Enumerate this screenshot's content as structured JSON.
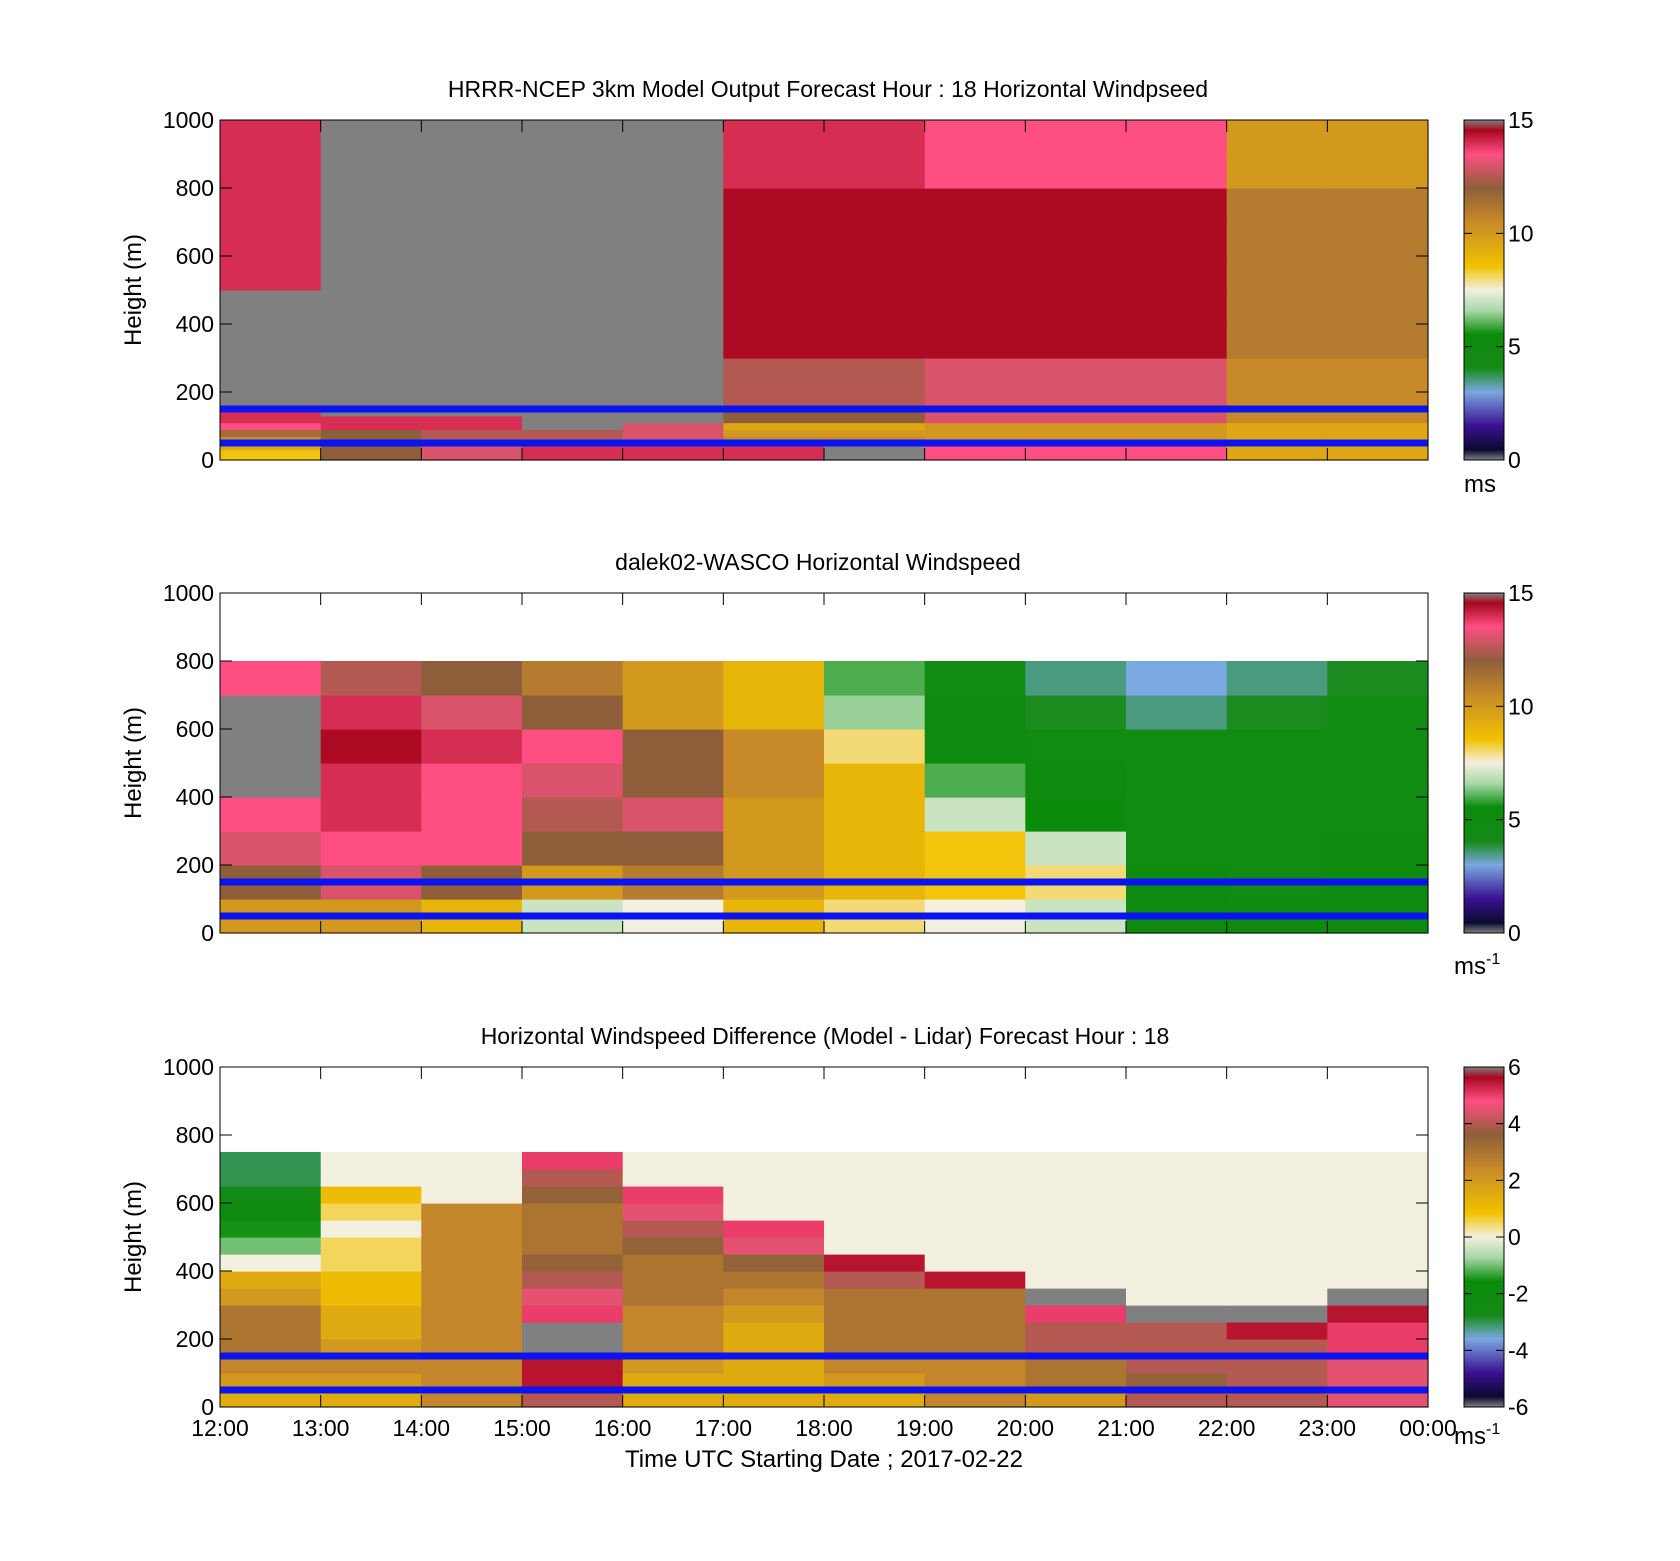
{
  "chart_data": [
    {
      "type": "heatmap",
      "title": "HRRR-NCEP 3km Model Output   Forecast Hour : 18 Horizontal Windpseed",
      "ylabel": "Height (m)",
      "ylim": [
        0,
        1000
      ],
      "yticks": [
        "0",
        "200",
        "400",
        "600",
        "800",
        "1000"
      ],
      "xlim": [
        12,
        24
      ],
      "colorbar": {
        "range": [
          0,
          15
        ],
        "ticks": [
          "0",
          "5",
          "10",
          "15"
        ],
        "unit": "ms",
        "unit_sup": ""
      },
      "reference_heights_m": [
        50,
        150
      ],
      "time_bins_h": [
        12,
        13,
        14,
        15,
        16,
        17,
        18,
        19,
        20,
        21,
        22,
        23
      ],
      "height_bins_m": [
        30,
        50,
        70,
        90,
        110,
        130,
        150,
        200,
        300,
        400,
        500,
        600,
        700,
        800,
        900,
        1000
      ],
      "values": [
        [
          8.5,
          12,
          13,
          14,
          14,
          14,
          15,
          13.5,
          13.5,
          13.5,
          9.5,
          9.5
        ],
        [
          9.5,
          12,
          13,
          14,
          14,
          14,
          15,
          13.5,
          13.5,
          13.5,
          9.5,
          9.5
        ],
        [
          10.5,
          12,
          12.5,
          12.5,
          13,
          10.5,
          10.5,
          10,
          10,
          10,
          9.5,
          9.5
        ],
        [
          11.5,
          12,
          12.5,
          12.5,
          13,
          10,
          10,
          10,
          10,
          10,
          9.5,
          9.5
        ],
        [
          13.5,
          14,
          14,
          15,
          13,
          9.5,
          9.5,
          10,
          10,
          10,
          9.5,
          9.5
        ],
        [
          14,
          14,
          14,
          15,
          15,
          12,
          12,
          13,
          13,
          13,
          10.5,
          10.5
        ],
        [
          14,
          0,
          0,
          0,
          0,
          12,
          12,
          13,
          13,
          13,
          10.5,
          10.5
        ],
        [
          15,
          0,
          0,
          0,
          15,
          12.5,
          12.5,
          13,
          13,
          13,
          10.5,
          10.5
        ],
        [
          15,
          0,
          0,
          0,
          15,
          12.5,
          12.5,
          13,
          13,
          13,
          10.5,
          10.5
        ],
        [
          15,
          0,
          0,
          0,
          0,
          14.5,
          14.5,
          14.5,
          14.5,
          14.5,
          11,
          11
        ],
        [
          15,
          0,
          0,
          0,
          0,
          14.5,
          14.5,
          14.5,
          14.5,
          14.5,
          11,
          11
        ],
        [
          14,
          15,
          0,
          0,
          0,
          14.5,
          14.5,
          14.5,
          14.5,
          14.5,
          11,
          11
        ],
        [
          14,
          15,
          0,
          0,
          0,
          14.5,
          14.5,
          14.5,
          14.5,
          14.5,
          11,
          11
        ],
        [
          14,
          15,
          0,
          0,
          0,
          14.5,
          14.5,
          14.5,
          14.5,
          14.5,
          11,
          11
        ],
        [
          14,
          15,
          0,
          15,
          15,
          14,
          14,
          13.5,
          13.5,
          13.5,
          10,
          10
        ],
        [
          14,
          15,
          0,
          15,
          15,
          14,
          14,
          13.5,
          13.5,
          13.5,
          10,
          10
        ]
      ]
    },
    {
      "type": "heatmap",
      "title": "dalek02-WASCO  Horizontal Windspeed",
      "ylabel": "Height (m)",
      "ylim": [
        0,
        1000
      ],
      "yticks": [
        "0",
        "200",
        "400",
        "600",
        "800",
        "1000"
      ],
      "xlim": [
        12,
        24
      ],
      "colorbar": {
        "range": [
          0,
          15
        ],
        "ticks": [
          "0",
          "5",
          "10",
          "15"
        ],
        "unit": "ms",
        "unit_sup": "-1"
      },
      "reference_heights_m": [
        50,
        150
      ],
      "time_bins_h": [
        12,
        13,
        14,
        15,
        16,
        17,
        18,
        19,
        20,
        21,
        22,
        23
      ],
      "height_bins_m": [
        100,
        200,
        300,
        400,
        500,
        600,
        700,
        800
      ],
      "values": [
        [
          10,
          10,
          9,
          7,
          7.5,
          9,
          8,
          7.5,
          7,
          5,
          5,
          5
        ],
        [
          12,
          13,
          12,
          10,
          11,
          10,
          9,
          8.5,
          8,
          5,
          4.5,
          5
        ],
        [
          13,
          13.5,
          13.5,
          12,
          12,
          10,
          9,
          8.5,
          7,
          4.5,
          4.5,
          5
        ],
        [
          13.5,
          14,
          13.5,
          12.5,
          13,
          10,
          9,
          7,
          5.5,
          4.5,
          4.5,
          4.5
        ],
        [
          0,
          14,
          13.5,
          13,
          12,
          10.5,
          9,
          6,
          5,
          4.5,
          4.5,
          4.5
        ],
        [
          0,
          14.5,
          14,
          13.5,
          12,
          10.5,
          8,
          5,
          4.5,
          4.5,
          4.5,
          4.5
        ],
        [
          0,
          14,
          13,
          12,
          10,
          9,
          6.5,
          5,
          4,
          3.5,
          4,
          4.5
        ],
        [
          13.5,
          12.5,
          12,
          11,
          10,
          9,
          6,
          4.5,
          3.5,
          3,
          3.5,
          4
        ]
      ]
    },
    {
      "type": "heatmap",
      "title": "Horizontal Windspeed Difference (Model - Lidar) Forecast Hour : 18",
      "ylabel": "Height (m)",
      "xlabel": "Time UTC  Starting Date ; 2017-02-22",
      "ylim": [
        0,
        1000
      ],
      "yticks": [
        "0",
        "200",
        "400",
        "600",
        "800",
        "1000"
      ],
      "xlim": [
        12,
        24
      ],
      "xticks": [
        "12:00",
        "13:00",
        "14:00",
        "15:00",
        "16:00",
        "17:00",
        "18:00",
        "19:00",
        "20:00",
        "21:00",
        "22:00",
        "23:00",
        "00:00"
      ],
      "colorbar": {
        "range": [
          -6,
          6
        ],
        "ticks": [
          "-6",
          "-4",
          "-2",
          "0",
          "2",
          "4",
          "6"
        ],
        "unit": "ms",
        "unit_sup": "-1"
      },
      "reference_heights_m": [
        50,
        150
      ],
      "time_bins_h": [
        12,
        13,
        14,
        15,
        16,
        17,
        18,
        19,
        20,
        21,
        22,
        23
      ],
      "height_bins_m": [
        50,
        100,
        150,
        200,
        250,
        300,
        350,
        400,
        450,
        500,
        550,
        600,
        650,
        700,
        750
      ],
      "values": [
        [
          1.5,
          1.5,
          2.5,
          4,
          1.5,
          1.5,
          1.5,
          2.5,
          2,
          4,
          4,
          4.5
        ],
        [
          2,
          2,
          2.5,
          5.5,
          1.5,
          1.5,
          2,
          2.5,
          3,
          3.5,
          4,
          4.5
        ],
        [
          2.5,
          2.5,
          2.5,
          5.5,
          2,
          1.5,
          2.5,
          2.5,
          3,
          4,
          4,
          4.5
        ],
        [
          3,
          2,
          2.5,
          6,
          2.5,
          1.5,
          3,
          3,
          4,
          4,
          4,
          5
        ],
        [
          3,
          1.5,
          2.5,
          6,
          2.5,
          1.5,
          3,
          3,
          4,
          4,
          5.5,
          5
        ],
        [
          3,
          1.5,
          2.5,
          5,
          2.5,
          2,
          3,
          3,
          5,
          6,
          6,
          5.5
        ],
        [
          2,
          1,
          2.5,
          4.5,
          3,
          2.5,
          3,
          3,
          6,
          0,
          0,
          6
        ],
        [
          1.5,
          1,
          2.5,
          4,
          3,
          3,
          4,
          5.5,
          0,
          0,
          0,
          0
        ],
        [
          0,
          0.5,
          2.5,
          3.5,
          3,
          3.5,
          5.5,
          0,
          0,
          0,
          0,
          0
        ],
        [
          -1,
          0.5,
          2.5,
          3,
          3.5,
          4.5,
          0,
          0,
          0,
          0,
          0,
          0
        ],
        [
          -1.5,
          0,
          2.5,
          3,
          4,
          5,
          0,
          0,
          0,
          0,
          0,
          0
        ],
        [
          -2,
          0.5,
          2.5,
          3,
          4.5,
          0,
          0,
          0,
          0,
          0,
          0,
          0
        ],
        [
          -2.5,
          1,
          0,
          3.5,
          5,
          0,
          0,
          0,
          0,
          0,
          0,
          0
        ],
        [
          -3,
          0,
          0,
          4,
          0,
          0,
          0,
          0,
          0,
          0,
          0,
          0
        ],
        [
          -3,
          0,
          0,
          5,
          0,
          0,
          0,
          0,
          0,
          0,
          0,
          0
        ]
      ]
    }
  ]
}
